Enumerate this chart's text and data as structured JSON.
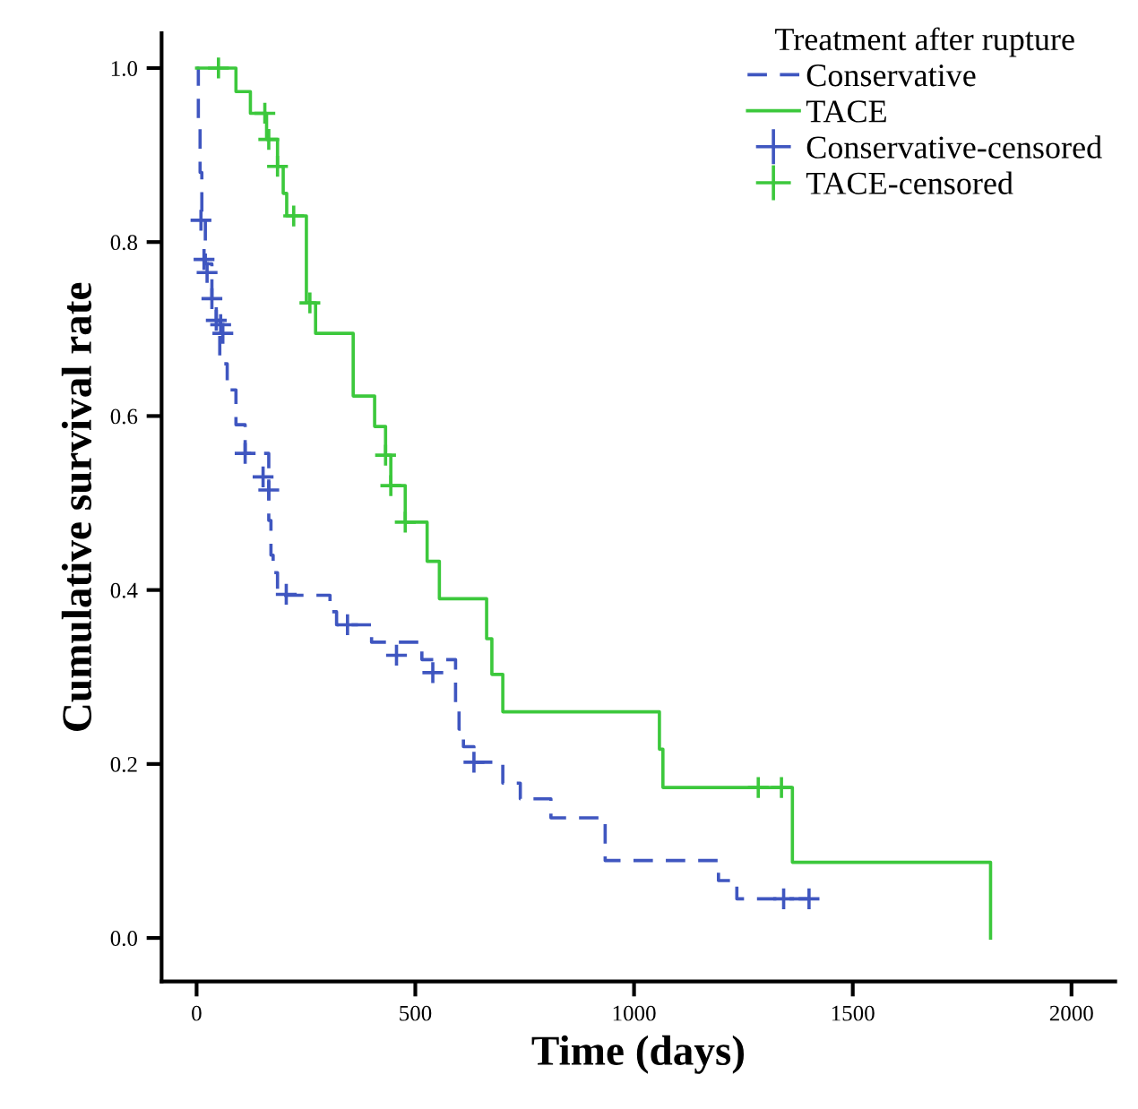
{
  "chart_data": {
    "type": "step",
    "xlabel": "Time (days)",
    "ylabel": "Cumulative survival rate",
    "legend_title": "Treatment after rupture",
    "legend": "top right",
    "grid": false,
    "xlim": [
      -80,
      2100
    ],
    "ylim": [
      -0.05,
      1.04
    ],
    "xticks": [
      0,
      500,
      1000,
      1500,
      2000
    ],
    "yticks": [
      {
        "value": 0,
        "label": "0.0"
      },
      {
        "value": 0.2,
        "label": "0.2"
      },
      {
        "value": 0.4,
        "label": "0.4"
      },
      {
        "value": 0.6,
        "label": "0.6"
      },
      {
        "value": 0.8,
        "label": "0.8"
      },
      {
        "value": 1,
        "label": "1.0"
      }
    ],
    "series": [
      {
        "name": "Conservative",
        "line_style": "dashed",
        "marker": "none",
        "color": "#3f56c0",
        "x": [
          0,
          4,
          8,
          12,
          20,
          35,
          45,
          53,
          70,
          90,
          111,
          165,
          170,
          175,
          185,
          305,
          320,
          400,
          515,
          592,
          600,
          610,
          634,
          700,
          740,
          810,
          934,
          1193,
          1235,
          1410
        ],
        "values": [
          1.0,
          0.94,
          0.88,
          0.825,
          0.775,
          0.735,
          0.71,
          0.66,
          0.63,
          0.59,
          0.557,
          0.48,
          0.44,
          0.42,
          0.394,
          0.375,
          0.36,
          0.34,
          0.32,
          0.27,
          0.24,
          0.22,
          0.202,
          0.178,
          0.16,
          0.138,
          0.089,
          0.066,
          0.045,
          0.045
        ]
      },
      {
        "name": "TACE",
        "line_style": "solid",
        "marker": "none",
        "color": "#3cc83c",
        "x": [
          0,
          90,
          123,
          160,
          185,
          198,
          206,
          251,
          272,
          358,
          407,
          432,
          444,
          477,
          527,
          555,
          663,
          675,
          700,
          1058,
          1066,
          1362,
          1815,
          1815
        ],
        "values": [
          1.0,
          0.973,
          0.948,
          0.918,
          0.887,
          0.856,
          0.83,
          0.73,
          0.695,
          0.623,
          0.588,
          0.555,
          0.52,
          0.478,
          0.433,
          0.39,
          0.344,
          0.303,
          0.26,
          0.217,
          0.173,
          0.087,
          0.087,
          0.0
        ]
      },
      {
        "name": "Conservative-censored",
        "type": "scatter",
        "marker": "cross",
        "color": "#3f56c0",
        "x": [
          10,
          17,
          24,
          35,
          45,
          55,
          60,
          111,
          152,
          165,
          205,
          345,
          457,
          540,
          634,
          1342,
          1400
        ],
        "values": [
          0.825,
          0.78,
          0.765,
          0.735,
          0.71,
          0.705,
          0.695,
          0.557,
          0.53,
          0.515,
          0.395,
          0.36,
          0.325,
          0.305,
          0.202,
          0.045,
          0.045
        ]
      },
      {
        "name": "TACE-censored",
        "type": "scatter",
        "marker": "cross",
        "color": "#3cc83c",
        "x": [
          50,
          156,
          165,
          185,
          222,
          259,
          432,
          444,
          477,
          1284,
          1337
        ],
        "values": [
          1.0,
          0.948,
          0.918,
          0.887,
          0.83,
          0.73,
          0.555,
          0.52,
          0.478,
          0.173,
          0.173
        ]
      }
    ]
  }
}
